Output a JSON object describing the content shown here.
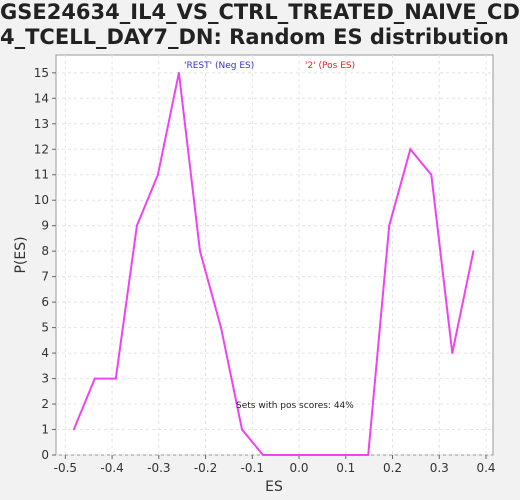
{
  "chart_data": {
    "type": "line",
    "title_line1": "GSE24634_IL4_VS_CTRL_TREATED_NAIVE_CD",
    "title_line2": "4_TCELL_DAY7_DN: Random ES distribution",
    "xlabel": "ES",
    "ylabel": "P(ES)",
    "xlim": [
      -0.52,
      0.415
    ],
    "ylim": [
      0,
      15.7
    ],
    "xticks": [
      -0.5,
      -0.4,
      -0.3,
      -0.2,
      -0.1,
      0.0,
      0.1,
      0.2,
      0.3,
      0.4
    ],
    "xtick_labels": [
      "-0.5",
      "-0.4",
      "-0.3",
      "-0.2",
      "-0.1",
      "0.0",
      "0.1",
      "0.2",
      "0.3",
      "0.4"
    ],
    "yticks": [
      0,
      1,
      2,
      3,
      4,
      5,
      6,
      7,
      8,
      9,
      10,
      11,
      12,
      13,
      14,
      15
    ],
    "grid": true,
    "legend": [
      {
        "label": "'REST' (Neg ES)",
        "color": "#3333cc"
      },
      {
        "label": "'2' (Pos ES)",
        "color": "#dd2222"
      }
    ],
    "annotation": "Sets with pos scores: 44%",
    "line_color": "#ee44ee",
    "series": [
      {
        "x": [
          -0.482,
          -0.437,
          -0.392,
          -0.347,
          -0.302,
          -0.257,
          -0.212,
          -0.167,
          -0.122,
          -0.077,
          -0.032,
          0.013,
          0.058,
          0.103,
          0.148,
          0.193,
          0.238,
          0.283,
          0.328,
          0.373
        ],
        "values": [
          1,
          3,
          3,
          9,
          11,
          15,
          8,
          5,
          1,
          0,
          0,
          0,
          0,
          0,
          0,
          9,
          12,
          11,
          4,
          8
        ]
      }
    ]
  }
}
